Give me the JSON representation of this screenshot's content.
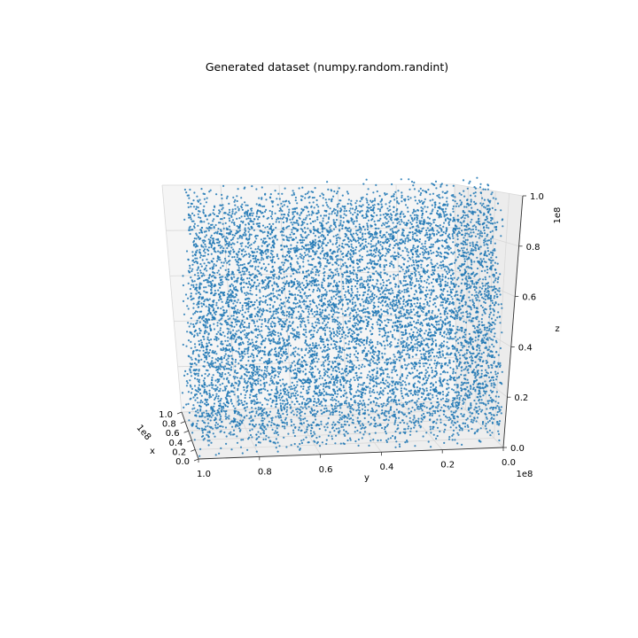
{
  "chart_data": {
    "type": "scatter",
    "dimensions": 3,
    "title": "Generated dataset (numpy.random.randint)",
    "xlabel": "x",
    "ylabel": "y",
    "zlabel": "z",
    "x_ticks": [
      "0.0",
      "0.2",
      "0.4",
      "0.6",
      "0.8",
      "1.0"
    ],
    "y_ticks": [
      "1.0",
      "0.8",
      "0.6",
      "0.4",
      "0.2",
      "0.0"
    ],
    "z_ticks": [
      "0.0",
      "0.2",
      "0.4",
      "0.6",
      "0.8",
      "1.0"
    ],
    "x_offset": "1e8",
    "y_offset": "1e8",
    "z_offset": "1e8",
    "xlim": [
      0,
      100000000
    ],
    "ylim": [
      0,
      100000000
    ],
    "zlim": [
      0,
      100000000
    ],
    "distribution": "uniform random integers",
    "point_count": 10000,
    "marker_color": "#1f77b4",
    "pane_color": "#f2f2f2",
    "grid": true
  }
}
